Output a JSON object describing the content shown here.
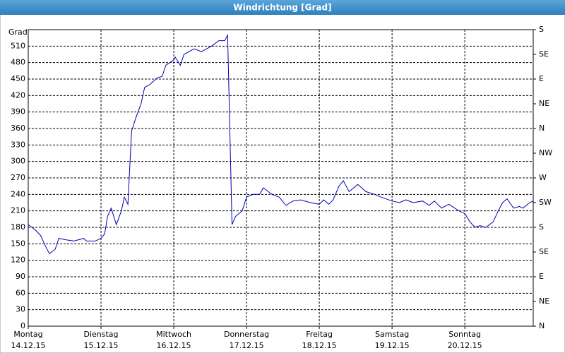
{
  "chart_data": {
    "type": "line",
    "title": "Windrichtung [Grad]",
    "y_label": "Grad",
    "xlim": [
      0,
      6.94
    ],
    "xticks": [
      {
        "value": 0,
        "label": "Montag"
      },
      {
        "value": 1,
        "label": "Dienstag"
      },
      {
        "value": 2,
        "label": "Mittwoch"
      },
      {
        "value": 3,
        "label": "Donnerstag"
      },
      {
        "value": 4,
        "label": "Freitag"
      },
      {
        "value": 5,
        "label": "Samstag"
      },
      {
        "value": 6,
        "label": "Sonntag"
      }
    ],
    "xtick_dates": [
      "14.12.15",
      "15.12.15",
      "16.12.15",
      "17.12.15",
      "18.12.15",
      "19.12.15",
      "20.12.15"
    ],
    "ylim": [
      0,
      540
    ],
    "yticks": [
      0,
      30,
      60,
      90,
      120,
      150,
      180,
      210,
      240,
      270,
      300,
      330,
      360,
      390,
      420,
      450,
      480,
      510
    ],
    "y2lim": [
      0,
      540
    ],
    "y2ticks": [
      {
        "value": 0,
        "label": "N"
      },
      {
        "value": 45,
        "label": "NE"
      },
      {
        "value": 90,
        "label": "E"
      },
      {
        "value": 135,
        "label": "SE"
      },
      {
        "value": 180,
        "label": "S"
      },
      {
        "value": 225,
        "label": "SW"
      },
      {
        "value": 270,
        "label": "W"
      },
      {
        "value": 315,
        "label": "NW"
      },
      {
        "value": 360,
        "label": "N"
      },
      {
        "value": 405,
        "label": "NE"
      },
      {
        "value": 450,
        "label": "E"
      },
      {
        "value": 495,
        "label": "SE"
      },
      {
        "value": 540,
        "label": "S"
      }
    ],
    "grid": true,
    "series": [
      {
        "name": "Windrichtung",
        "color": "#0000b0",
        "x": [
          0,
          0.1,
          0.17,
          0.24,
          0.29,
          0.37,
          0.42,
          0.53,
          0.63,
          0.76,
          0.8,
          0.92,
          1.0,
          1.05,
          1.09,
          1.14,
          1.21,
          1.28,
          1.32,
          1.37,
          1.42,
          1.48,
          1.55,
          1.6,
          1.67,
          1.77,
          1.84,
          1.89,
          2.0,
          2.02,
          2.09,
          2.14,
          2.21,
          2.28,
          2.38,
          2.52,
          2.62,
          2.7,
          2.74,
          2.8,
          2.85,
          2.94,
          3.0,
          3.09,
          3.18,
          3.23,
          3.35,
          3.45,
          3.54,
          3.64,
          3.74,
          3.88,
          4.0,
          4.06,
          4.13,
          4.19,
          4.27,
          4.33,
          4.41,
          4.53,
          4.64,
          4.76,
          4.85,
          5.0,
          5.1,
          5.19,
          5.29,
          5.42,
          5.51,
          5.58,
          5.68,
          5.78,
          5.92,
          6.0,
          6.07,
          6.14,
          6.21,
          6.29,
          6.39,
          6.46,
          6.52,
          6.58,
          6.67,
          6.75,
          6.8,
          6.89,
          6.94
        ],
        "values": [
          185,
          175,
          165,
          145,
          132,
          140,
          160,
          157,
          155,
          160,
          155,
          155,
          160,
          168,
          200,
          215,
          185,
          210,
          235,
          222,
          355,
          380,
          405,
          435,
          440,
          452,
          455,
          475,
          485,
          490,
          475,
          495,
          500,
          505,
          500,
          510,
          520,
          520,
          530,
          185,
          200,
          210,
          235,
          240,
          240,
          252,
          240,
          235,
          220,
          228,
          230,
          225,
          222,
          230,
          222,
          230,
          255,
          265,
          245,
          258,
          245,
          240,
          235,
          228,
          225,
          230,
          225,
          228,
          220,
          228,
          215,
          222,
          210,
          205,
          190,
          180,
          183,
          180,
          190,
          210,
          225,
          232,
          215,
          218,
          215,
          225,
          228
        ]
      }
    ]
  }
}
